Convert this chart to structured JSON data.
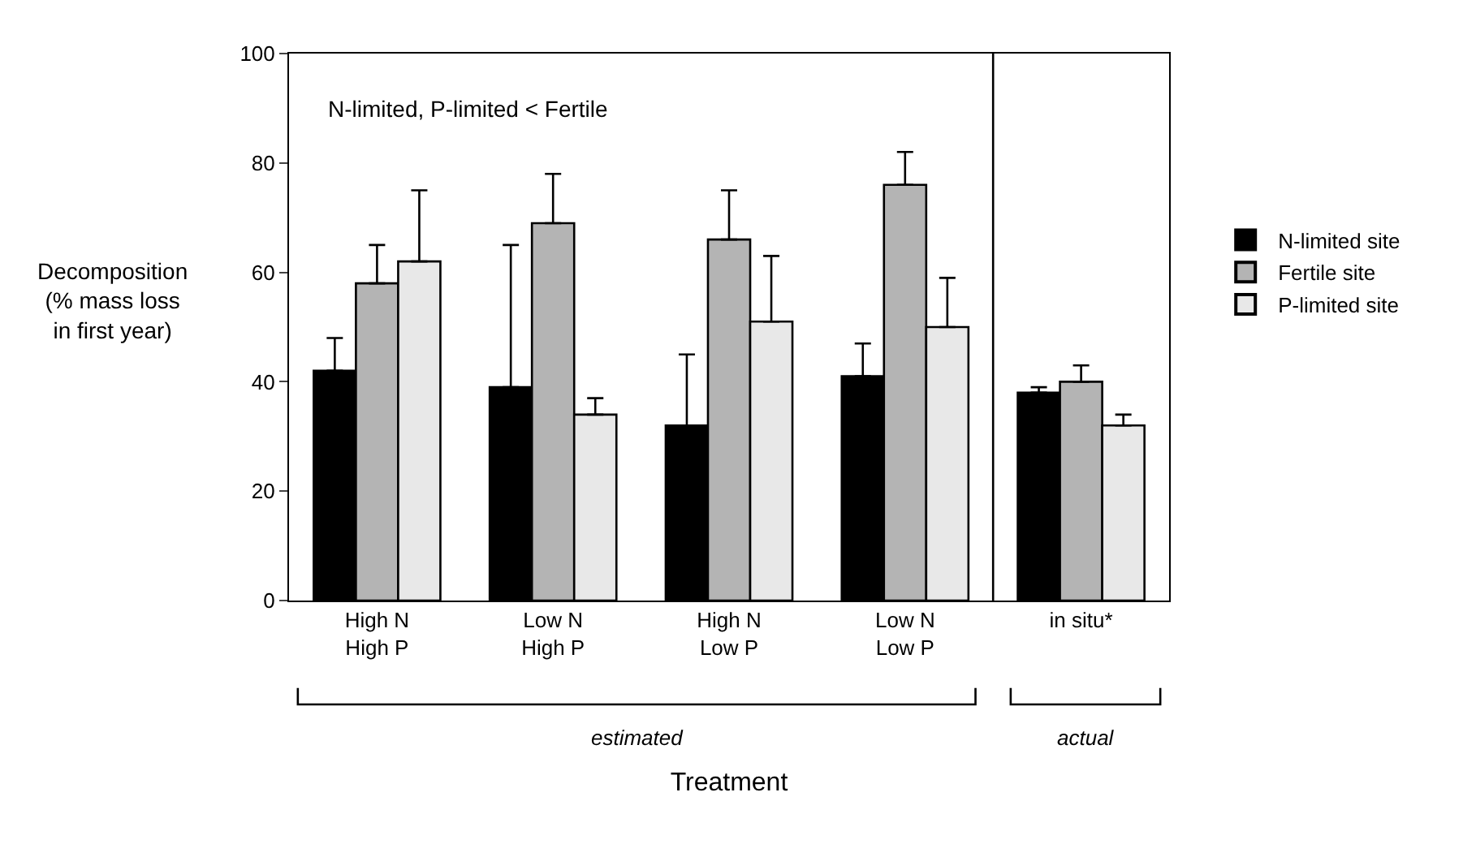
{
  "chart_data": {
    "type": "bar",
    "xlabel": "Treatment",
    "ylabel": "Decomposition\n(% mass loss\nin first year)",
    "categories": [
      "High N\nHigh P",
      "Low N\nHigh P",
      "High N\nLow P",
      "Low N\nLow P",
      "in situ*"
    ],
    "series": [
      {
        "name": "N-limited site",
        "color": "#000000",
        "values": [
          42,
          39,
          32,
          41,
          38
        ],
        "errors": [
          [
            42,
            48
          ],
          [
            39,
            65
          ],
          [
            32,
            45
          ],
          [
            41,
            47
          ],
          [
            38,
            39
          ]
        ]
      },
      {
        "name": "Fertile site",
        "color": "#b4b4b4",
        "values": [
          58,
          69,
          66,
          76,
          40
        ],
        "errors": [
          [
            58,
            65
          ],
          [
            69,
            78
          ],
          [
            66,
            75
          ],
          [
            76,
            82
          ],
          [
            40,
            43
          ]
        ]
      },
      {
        "name": "P-limited site",
        "color": "#e8e8e8",
        "values": [
          62,
          34,
          51,
          50,
          32
        ],
        "errors": [
          [
            62,
            75
          ],
          [
            34,
            37
          ],
          [
            51,
            63
          ],
          [
            50,
            59
          ],
          [
            32,
            34
          ]
        ]
      }
    ],
    "ylim": [
      0,
      100
    ],
    "yticks": [
      0,
      20,
      40,
      60,
      80,
      100
    ],
    "annotations": [
      "N-limited, P-limited < Fertile",
      "estimated",
      "actual"
    ],
    "legend": "right"
  }
}
